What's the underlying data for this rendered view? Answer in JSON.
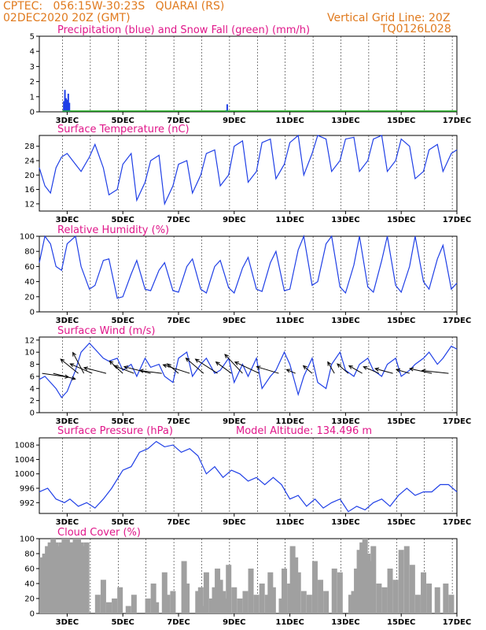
{
  "header": {
    "station": "CPTEC:   056:15W-30:23S   QUARAI (RS)",
    "run": "02DEC2020 20Z (GMT)",
    "grid_note": "Vertical Grid Line: 20Z",
    "code": "TQ0126L028"
  },
  "colors": {
    "header": "#e07a1e",
    "title": "#e0178a",
    "series": "#1f3fe6",
    "snow": "#21b221",
    "cloud": "#a0a0a0",
    "wind_arrow": "#000000"
  },
  "x_labels": [
    "3DEC",
    "5DEC",
    "7DEC",
    "9DEC",
    "11DEC",
    "13DEC",
    "15DEC",
    "17DEC"
  ],
  "chart_data": [
    {
      "type": "bar",
      "title": "Precipitation (blue) and Snow Fall (green) (mm/h)",
      "ylim": [
        0,
        5
      ],
      "yticks": [
        "0",
        "1",
        "2",
        "3",
        "4",
        "5"
      ],
      "x_start": 2.83,
      "x_end": 17.0,
      "series": [
        {
          "name": "Precipitation",
          "x": [
            2.88,
            2.92,
            2.96,
            3.0,
            3.04,
            3.08,
            8.71,
            8.75
          ],
          "values": [
            0.7,
            1.45,
            0.9,
            0.8,
            1.2,
            0.6,
            0.1,
            0.5
          ]
        },
        {
          "name": "Snow Fall",
          "x": [],
          "values": []
        }
      ]
    },
    {
      "type": "line",
      "title": "Surface Temperature (nC)",
      "ylim": [
        10,
        31
      ],
      "yticks": [
        "12",
        "16",
        "20",
        "24",
        "28"
      ],
      "x_start": 2.0,
      "x_end": 17.0,
      "series": [
        {
          "name": "Temperature",
          "x": [
            2.0,
            2.2,
            2.4,
            2.6,
            2.8,
            3.0,
            3.3,
            3.5,
            3.8,
            4.0,
            4.3,
            4.5,
            4.8,
            5.0,
            5.3,
            5.5,
            5.8,
            6.0,
            6.3,
            6.5,
            6.8,
            7.0,
            7.3,
            7.5,
            7.8,
            8.0,
            8.3,
            8.5,
            8.8,
            9.0,
            9.3,
            9.5,
            9.8,
            10.0,
            10.3,
            10.5,
            10.8,
            11.0,
            11.3,
            11.5,
            11.8,
            12.0,
            12.3,
            12.5,
            12.8,
            13.0,
            13.3,
            13.5,
            13.8,
            14.0,
            14.3,
            14.5,
            14.8,
            15.0,
            15.3,
            15.5,
            15.8,
            16.0,
            16.3,
            16.5,
            16.8,
            17.0
          ],
          "values": [
            22,
            17,
            15,
            22,
            25,
            26,
            23,
            21,
            25,
            28.5,
            22,
            14.5,
            16,
            23,
            26,
            13,
            18,
            24,
            25.5,
            12,
            17,
            23,
            24,
            15,
            20,
            26,
            27,
            17,
            20,
            28,
            29.5,
            18,
            21,
            29,
            30,
            19,
            23,
            29,
            31,
            20,
            26,
            31,
            30,
            21,
            24,
            30,
            30.5,
            21,
            24,
            30,
            31,
            21,
            24,
            30,
            28,
            19,
            21,
            27,
            28.5,
            21,
            26,
            27
          ]
        }
      ]
    },
    {
      "type": "line",
      "title": "Relative Humidity (%)",
      "ylim": [
        0,
        100
      ],
      "yticks": [
        "0",
        "20",
        "40",
        "60",
        "80",
        "100"
      ],
      "x_start": 2.0,
      "x_end": 17.0,
      "series": [
        {
          "name": "Relative Humidity",
          "x": [
            2.0,
            2.2,
            2.4,
            2.6,
            2.8,
            3.0,
            3.3,
            3.5,
            3.8,
            4.0,
            4.3,
            4.5,
            4.8,
            5.0,
            5.3,
            5.5,
            5.8,
            6.0,
            6.3,
            6.5,
            6.8,
            7.0,
            7.3,
            7.5,
            7.8,
            8.0,
            8.3,
            8.5,
            8.8,
            9.0,
            9.3,
            9.5,
            9.8,
            10.0,
            10.3,
            10.5,
            10.8,
            11.0,
            11.3,
            11.5,
            11.8,
            12.0,
            12.3,
            12.5,
            12.8,
            13.0,
            13.3,
            13.5,
            13.8,
            14.0,
            14.3,
            14.5,
            14.8,
            15.0,
            15.3,
            15.5,
            15.8,
            16.0,
            16.3,
            16.5,
            16.8,
            17.0
          ],
          "values": [
            65,
            100,
            90,
            60,
            55,
            90,
            100,
            60,
            30,
            35,
            68,
            70,
            18,
            20,
            50,
            68,
            30,
            28,
            55,
            65,
            28,
            26,
            60,
            70,
            30,
            25,
            60,
            68,
            32,
            25,
            58,
            72,
            30,
            27,
            65,
            80,
            28,
            30,
            82,
            100,
            35,
            40,
            90,
            100,
            33,
            25,
            62,
            100,
            33,
            26,
            68,
            100,
            35,
            26,
            60,
            100,
            40,
            30,
            70,
            88,
            30,
            38
          ]
        }
      ]
    },
    {
      "type": "line",
      "title": "Surface Wind (m/s)",
      "ylim": [
        0,
        12.5
      ],
      "yticks": [
        "0",
        "2",
        "4",
        "6",
        "8",
        "10",
        "12"
      ],
      "x_start": 2.0,
      "x_end": 17.0,
      "series": [
        {
          "name": "Wind Speed",
          "x": [
            2.0,
            2.2,
            2.4,
            2.6,
            2.8,
            3.0,
            3.3,
            3.5,
            3.8,
            4.0,
            4.3,
            4.5,
            4.8,
            5.0,
            5.3,
            5.5,
            5.8,
            6.0,
            6.3,
            6.5,
            6.8,
            7.0,
            7.3,
            7.5,
            7.8,
            8.0,
            8.3,
            8.5,
            8.8,
            9.0,
            9.3,
            9.5,
            9.8,
            10.0,
            10.3,
            10.5,
            10.8,
            11.0,
            11.3,
            11.5,
            11.8,
            12.0,
            12.3,
            12.5,
            12.8,
            13.0,
            13.3,
            13.5,
            13.8,
            14.0,
            14.3,
            14.5,
            14.8,
            15.0,
            15.3,
            15.5,
            15.8,
            16.0,
            16.3,
            16.5,
            16.8,
            17.0
          ],
          "values": [
            5.5,
            6,
            5,
            4,
            2.5,
            3.5,
            7,
            10,
            11.5,
            10.5,
            9,
            8.5,
            9,
            7,
            8,
            6,
            9,
            7.5,
            8,
            6,
            5,
            9,
            10,
            6,
            8,
            9,
            6.5,
            7,
            9,
            5,
            8,
            6,
            9,
            4,
            6,
            7,
            10,
            8,
            3,
            6,
            9,
            5,
            4,
            8,
            10,
            7,
            6,
            8,
            9,
            7,
            6,
            8,
            9,
            6,
            7,
            8,
            9,
            10,
            8,
            9,
            11,
            10.5
          ]
        }
      ],
      "wind_arrows": [
        {
          "x": 2.1,
          "dx": 1.2,
          "dy": -0.4
        },
        {
          "x": 2.5,
          "dx": 1.0,
          "dy": -0.6
        },
        {
          "x": 3.4,
          "dx": -0.8,
          "dy": 1.5
        },
        {
          "x": 3.6,
          "dx": -0.5,
          "dy": 2.2
        },
        {
          "x": 3.9,
          "dx": -1.0,
          "dy": 1.0
        },
        {
          "x": 4.4,
          "dx": -1.0,
          "dy": 0.6
        },
        {
          "x": 5.0,
          "dx": -0.6,
          "dy": 1.3
        },
        {
          "x": 5.4,
          "dx": -0.9,
          "dy": 0.8
        },
        {
          "x": 6.0,
          "dx": -1.2,
          "dy": 0.7
        },
        {
          "x": 6.4,
          "dx": -1.0,
          "dy": 0.3
        },
        {
          "x": 7.0,
          "dx": -0.5,
          "dy": 1.0
        },
        {
          "x": 7.4,
          "dx": -1.2,
          "dy": 0.9
        },
        {
          "x": 7.9,
          "dx": -0.8,
          "dy": 1.6
        },
        {
          "x": 8.4,
          "dx": -1.0,
          "dy": 1.5
        },
        {
          "x": 8.9,
          "dx": -0.7,
          "dy": 1.2
        },
        {
          "x": 9.3,
          "dx": -0.8,
          "dy": 2.0
        },
        {
          "x": 9.9,
          "dx": -1.1,
          "dy": 1.2
        },
        {
          "x": 10.6,
          "dx": -1.0,
          "dy": 0.7
        },
        {
          "x": 11.2,
          "dx": -0.4,
          "dy": 0.4
        },
        {
          "x": 11.8,
          "dx": -0.4,
          "dy": 0.8
        },
        {
          "x": 12.6,
          "dx": -0.3,
          "dy": 1.2
        },
        {
          "x": 13.1,
          "dx": -0.5,
          "dy": 1.0
        },
        {
          "x": 13.6,
          "dx": -0.6,
          "dy": 0.8
        },
        {
          "x": 14.2,
          "dx": -0.7,
          "dy": 0.7
        },
        {
          "x": 14.7,
          "dx": -0.8,
          "dy": 0.5
        },
        {
          "x": 15.3,
          "dx": -0.6,
          "dy": 0.4
        },
        {
          "x": 16.1,
          "dx": -1.0,
          "dy": 0.5
        },
        {
          "x": 16.7,
          "dx": -1.2,
          "dy": 0.3
        }
      ]
    },
    {
      "type": "line",
      "title": "Surface Pressure (hPa)",
      "subtitle": "Model Altitude: 134.496 m",
      "ylim": [
        989,
        1010
      ],
      "yticks": [
        "992",
        "996",
        "1000",
        "1004",
        "1008"
      ],
      "x_start": 2.0,
      "x_end": 17.0,
      "series": [
        {
          "name": "Pressure",
          "x": [
            2.0,
            2.3,
            2.6,
            2.9,
            3.1,
            3.4,
            3.7,
            4.0,
            4.3,
            4.6,
            5.0,
            5.3,
            5.6,
            5.9,
            6.2,
            6.5,
            6.8,
            7.1,
            7.4,
            7.7,
            8.0,
            8.3,
            8.6,
            8.9,
            9.2,
            9.5,
            9.8,
            10.1,
            10.4,
            10.7,
            11.0,
            11.3,
            11.6,
            11.9,
            12.2,
            12.5,
            12.8,
            13.1,
            13.4,
            13.7,
            14.0,
            14.3,
            14.6,
            14.9,
            15.2,
            15.5,
            15.8,
            16.1,
            16.4,
            16.7,
            17.0
          ],
          "values": [
            995,
            996,
            993,
            992,
            993,
            991,
            992,
            990.5,
            993,
            996,
            1001,
            1002,
            1006,
            1007,
            1009,
            1007.5,
            1008,
            1006,
            1007,
            1005,
            1000,
            1002,
            999,
            1001,
            1000,
            998,
            999,
            997,
            999,
            997,
            993,
            994,
            991,
            993,
            990.5,
            992,
            993,
            989.5,
            991,
            990,
            992,
            993,
            991,
            994,
            996,
            994,
            995,
            995,
            997,
            997,
            995
          ]
        }
      ]
    },
    {
      "type": "bar",
      "title": "Cloud Cover (%)",
      "ylim": [
        0,
        100
      ],
      "yticks": [
        "0",
        "20",
        "40",
        "60",
        "80",
        "100"
      ],
      "x_start": 2.0,
      "x_end": 17.0,
      "series": [
        {
          "name": "Cloud Cover",
          "x": [
            2.1,
            2.2,
            2.3,
            2.4,
            2.5,
            2.6,
            2.7,
            2.8,
            2.9,
            3.0,
            3.1,
            3.2,
            3.3,
            3.4,
            3.5,
            3.6,
            3.7,
            4.1,
            4.3,
            4.5,
            4.7,
            4.9,
            5.2,
            5.4,
            5.9,
            6.1,
            6.2,
            6.5,
            6.6,
            6.8,
            7.2,
            7.3,
            7.7,
            7.8,
            7.9,
            8.0,
            8.2,
            8.3,
            8.4,
            8.5,
            8.6,
            8.7,
            8.8,
            9.0,
            9.2,
            9.4,
            9.6,
            9.8,
            10.0,
            10.2,
            10.3,
            10.4,
            10.7,
            10.8,
            11.0,
            11.1,
            11.2,
            11.3,
            11.5,
            11.7,
            11.9,
            12.1,
            12.3,
            12.6,
            12.8,
            13.2,
            13.3,
            13.4,
            13.5,
            13.6,
            13.7,
            13.8,
            13.9,
            14.0,
            14.2,
            14.4,
            14.6,
            14.8,
            15.0,
            15.2,
            15.4,
            15.6,
            15.8,
            16.0,
            16.3,
            16.6,
            16.8
          ],
          "values": [
            75,
            80,
            90,
            95,
            100,
            95,
            90,
            95,
            100,
            100,
            95,
            95,
            100,
            100,
            95,
            90,
            95,
            25,
            45,
            15,
            20,
            35,
            10,
            25,
            20,
            40,
            15,
            55,
            25,
            30,
            70,
            40,
            30,
            35,
            10,
            55,
            20,
            35,
            60,
            45,
            30,
            20,
            65,
            35,
            20,
            30,
            60,
            25,
            40,
            25,
            55,
            35,
            20,
            60,
            40,
            90,
            75,
            55,
            30,
            25,
            70,
            45,
            30,
            60,
            55,
            25,
            30,
            60,
            85,
            95,
            100,
            80,
            70,
            90,
            40,
            35,
            60,
            45,
            85,
            90,
            65,
            25,
            55,
            40,
            35,
            40,
            25
          ]
        }
      ]
    }
  ]
}
